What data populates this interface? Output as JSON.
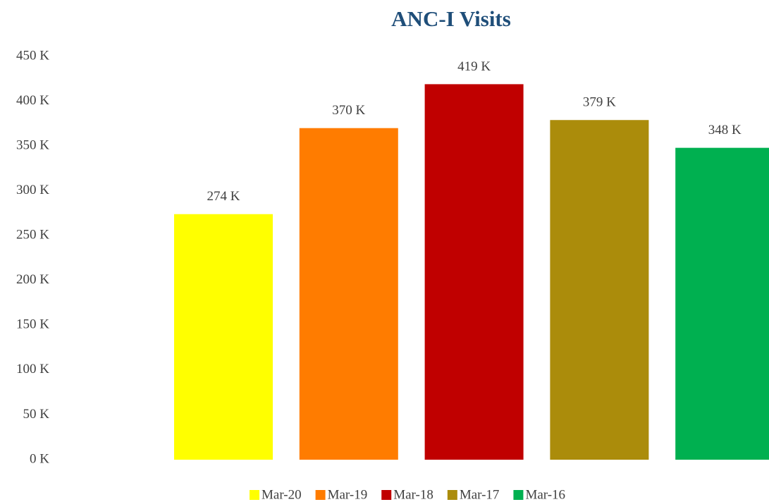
{
  "chart_data": {
    "type": "bar",
    "title": "ANC-I Visits",
    "series": [
      {
        "name": "Mar-20",
        "color": "#ffff00",
        "values": [
          274000
        ],
        "value_labels": [
          "274 K"
        ]
      },
      {
        "name": "Mar-19",
        "color": "#ff7c00",
        "values": [
          370000
        ],
        "value_labels": [
          "370 K"
        ]
      },
      {
        "name": "Mar-18",
        "color": "#c00000",
        "values": [
          419000
        ],
        "value_labels": [
          "419 K"
        ]
      },
      {
        "name": "Mar-17",
        "color": "#ab8c0b",
        "values": [
          379000
        ],
        "value_labels": [
          "379 K"
        ]
      },
      {
        "name": "Mar-16",
        "color": "#00b050",
        "values": [
          348000
        ],
        "value_labels": [
          "348 K"
        ]
      }
    ],
    "ylim": [
      0,
      450000
    ],
    "yticks": [
      {
        "value": 0,
        "label": "0 K"
      },
      {
        "value": 50000,
        "label": "50 K"
      },
      {
        "value": 100000,
        "label": "100 K"
      },
      {
        "value": 150000,
        "label": "150 K"
      },
      {
        "value": 200000,
        "label": "200 K"
      },
      {
        "value": 250000,
        "label": "250 K"
      },
      {
        "value": 300000,
        "label": "300 K"
      },
      {
        "value": 350000,
        "label": "350 K"
      },
      {
        "value": 400000,
        "label": "400 K"
      },
      {
        "value": 450000,
        "label": "450 K"
      }
    ],
    "grid": false,
    "legend": "bottom"
  }
}
